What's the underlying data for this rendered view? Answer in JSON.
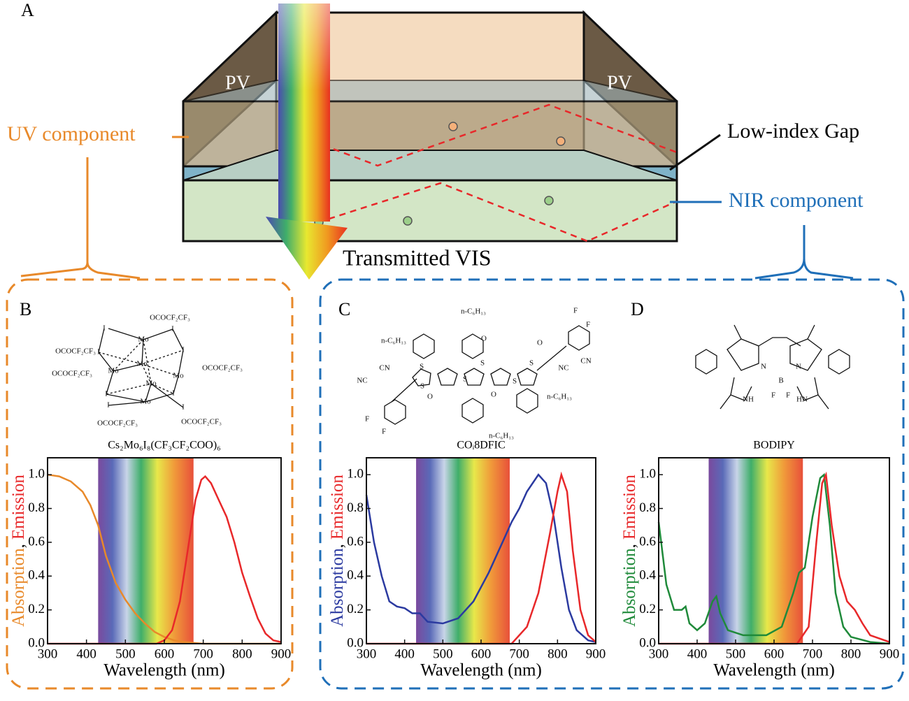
{
  "diagram": {
    "panel": "A",
    "pv_left": "PV",
    "pv_right": "PV",
    "uv": "UV component",
    "gap": "Low-index Gap",
    "nir": "NIR component",
    "transmitted": "Transmitted VIS"
  },
  "chart_data": [
    {
      "type": "line",
      "panel": "B",
      "structure": {
        "name": "Cs₂Mo₆I₈(CF₃CF₂COO)₆",
        "atoms": [
          "OCOCF₂CF₃",
          "OCOCF₂CF₃",
          "OCOCF₂CF₃",
          "OCOCF₂CF₃",
          "OCOCF₂CF₃",
          "OCOCF₂CF₃",
          "Mo",
          "Mo",
          "Mo",
          "Mo",
          "Mo",
          "Mo",
          "I",
          "I",
          "I",
          "I",
          "I",
          "I",
          "I",
          "I"
        ]
      },
      "xlabel": "Wavelength (nm)",
      "ylabel": [
        "Absorption",
        ",",
        "Emission"
      ],
      "xlim": [
        300,
        900
      ],
      "ylim": [
        0,
        1.1
      ],
      "xticks": [
        300,
        400,
        500,
        600,
        700,
        800,
        900
      ],
      "yticks": [
        {
          "value": 0,
          "label": "0.0"
        },
        0.2,
        0.4,
        0.6,
        0.8,
        {
          "value": 1,
          "label": "1.0"
        }
      ],
      "shaded_range": [
        430,
        675
      ],
      "series": [
        {
          "name": "Absorption",
          "color": "#e8892a",
          "x": [
            300,
            330,
            360,
            390,
            410,
            430,
            450,
            475,
            500,
            525,
            550,
            575,
            600,
            625,
            650,
            700,
            900
          ],
          "values": [
            1.0,
            0.99,
            0.96,
            0.9,
            0.82,
            0.7,
            0.52,
            0.36,
            0.26,
            0.18,
            0.12,
            0.07,
            0.04,
            0.02,
            0.01,
            0,
            0
          ]
        },
        {
          "name": "Emission",
          "color": "#e8282a",
          "x": [
            300,
            580,
            600,
            620,
            640,
            660,
            680,
            695,
            705,
            720,
            740,
            760,
            780,
            800,
            820,
            840,
            860,
            880,
            900
          ],
          "values": [
            0,
            0,
            0.02,
            0.08,
            0.25,
            0.55,
            0.85,
            0.97,
            0.99,
            0.95,
            0.85,
            0.75,
            0.6,
            0.42,
            0.28,
            0.15,
            0.06,
            0.02,
            0.01
          ]
        }
      ]
    },
    {
      "type": "line",
      "panel": "C",
      "structure": {
        "name": "COᵢ8DFIC",
        "atoms": [
          "n-C₆H₁₃",
          "n-C₆H₁₃",
          "n-C₆H₁₃",
          "n-C₆H₁₃",
          "S",
          "S",
          "S",
          "S",
          "S",
          "S",
          "O",
          "O",
          "O",
          "O",
          "CN",
          "NC",
          "NC",
          "CN",
          "F",
          "F",
          "F",
          "F"
        ]
      },
      "xlabel": "Wavelength (nm)",
      "ylabel": [
        "Absorption",
        ",",
        "Emission"
      ],
      "xlim": [
        300,
        900
      ],
      "ylim": [
        0,
        1.1
      ],
      "xticks": [
        300,
        400,
        500,
        600,
        700,
        800,
        900
      ],
      "yticks": [
        {
          "value": 0,
          "label": "0.0"
        },
        0.2,
        0.4,
        0.6,
        0.8,
        {
          "value": 1,
          "label": "1.0"
        }
      ],
      "shaded_range": [
        430,
        675
      ],
      "series": [
        {
          "name": "Absorption",
          "color": "#2b3aa0",
          "x": [
            300,
            320,
            340,
            360,
            380,
            400,
            420,
            440,
            460,
            500,
            540,
            580,
            620,
            660,
            680,
            700,
            720,
            750,
            770,
            790,
            810,
            830,
            850,
            880,
            900
          ],
          "values": [
            0.88,
            0.6,
            0.4,
            0.25,
            0.22,
            0.21,
            0.18,
            0.18,
            0.13,
            0.12,
            0.15,
            0.25,
            0.42,
            0.62,
            0.72,
            0.8,
            0.9,
            1.0,
            0.95,
            0.75,
            0.45,
            0.2,
            0.08,
            0.02,
            0.01
          ]
        },
        {
          "name": "Emission",
          "color": "#e8282a",
          "x": [
            300,
            680,
            720,
            750,
            780,
            800,
            810,
            825,
            840,
            860,
            880,
            900
          ],
          "values": [
            0,
            0,
            0.1,
            0.3,
            0.65,
            0.9,
            1.0,
            0.9,
            0.55,
            0.2,
            0.05,
            0.01
          ]
        }
      ]
    },
    {
      "type": "line",
      "panel": "D",
      "structure": {
        "name": "BODIPY",
        "atoms": [
          "N",
          "B",
          "N",
          "F",
          "F",
          "NH",
          "HN"
        ]
      },
      "xlabel": "Wavelength (nm)",
      "ylabel": [
        "Absorption",
        ",",
        "Emission"
      ],
      "xlim": [
        300,
        900
      ],
      "ylim": [
        0,
        1.1
      ],
      "xticks": [
        300,
        400,
        500,
        600,
        700,
        800,
        900
      ],
      "yticks": [
        {
          "value": 0,
          "label": "0.0"
        },
        0.2,
        0.4,
        0.6,
        0.8,
        {
          "value": 1,
          "label": "1.0"
        }
      ],
      "shaded_range": [
        430,
        675
      ],
      "series": [
        {
          "name": "Absorption",
          "color": "#1f8a3a",
          "x": [
            300,
            320,
            340,
            360,
            370,
            380,
            400,
            420,
            440,
            450,
            460,
            480,
            520,
            580,
            620,
            650,
            665,
            680,
            700,
            720,
            730,
            745,
            760,
            780,
            800,
            850,
            900
          ],
          "values": [
            0.72,
            0.35,
            0.2,
            0.2,
            0.22,
            0.12,
            0.08,
            0.12,
            0.25,
            0.28,
            0.18,
            0.08,
            0.05,
            0.05,
            0.1,
            0.3,
            0.42,
            0.45,
            0.75,
            0.98,
            1.0,
            0.7,
            0.3,
            0.1,
            0.04,
            0.01,
            0
          ]
        },
        {
          "name": "Emission",
          "color": "#e8282a",
          "x": [
            300,
            660,
            690,
            710,
            725,
            735,
            750,
            770,
            790,
            810,
            830,
            850,
            900
          ],
          "values": [
            0,
            0,
            0.1,
            0.6,
            0.95,
            1.0,
            0.7,
            0.4,
            0.25,
            0.2,
            0.12,
            0.05,
            0.01
          ]
        }
      ]
    }
  ]
}
